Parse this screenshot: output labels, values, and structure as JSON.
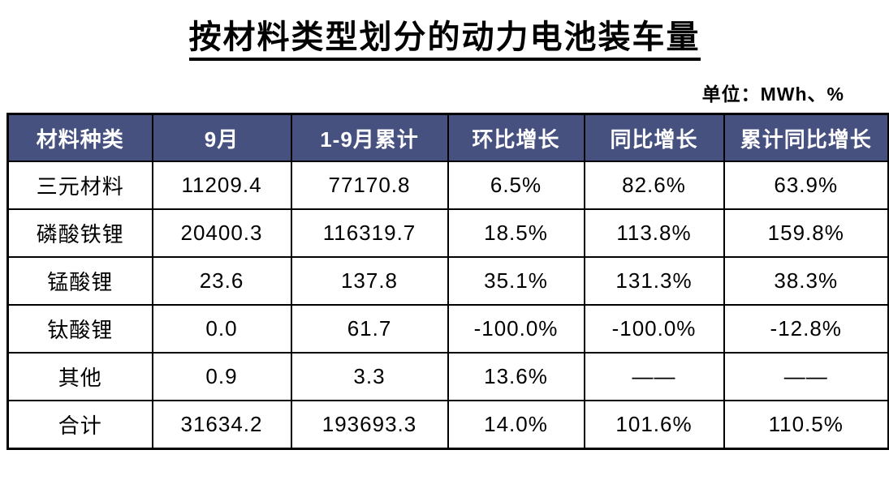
{
  "page": {
    "title": "按材料类型划分的动力电池装车量",
    "unit_label": "单位：MWh、%"
  },
  "colors": {
    "header_bg": "#475180",
    "header_text": "#ffffff",
    "border": "#000000",
    "body_text": "#000000"
  },
  "table": {
    "columns": [
      "材料种类",
      "9月",
      "1-9月累计",
      "环比增长",
      "同比增长",
      "累计同比增长"
    ],
    "rows": [
      [
        "三元材料",
        "11209.4",
        "77170.8",
        "6.5%",
        "82.6%",
        "63.9%"
      ],
      [
        "磷酸铁锂",
        "20400.3",
        "116319.7",
        "18.5%",
        "113.8%",
        "159.8%"
      ],
      [
        "锰酸锂",
        "23.6",
        "137.8",
        "35.1%",
        "131.3%",
        "38.3%"
      ],
      [
        "钛酸锂",
        "0.0",
        "61.7",
        "-100.0%",
        "-100.0%",
        "-12.8%"
      ],
      [
        "其他",
        "0.9",
        "3.3",
        "13.6%",
        "——",
        "——"
      ],
      [
        "合计",
        "31634.2",
        "193693.3",
        "14.0%",
        "101.6%",
        "110.5%"
      ]
    ]
  },
  "chart_data": {
    "type": "table",
    "title": "按材料类型划分的动力电池装车量",
    "unit": "MWh、%",
    "columns": [
      "材料种类",
      "9月",
      "1-9月累计",
      "环比增长",
      "同比增长",
      "累计同比增长"
    ],
    "records": [
      {
        "材料种类": "三元材料",
        "9月": 11209.4,
        "1-9月累计": 77170.8,
        "环比增长": "6.5%",
        "同比增长": "82.6%",
        "累计同比增长": "63.9%"
      },
      {
        "材料种类": "磷酸铁锂",
        "9月": 20400.3,
        "1-9月累计": 116319.7,
        "环比增长": "18.5%",
        "同比增长": "113.8%",
        "累计同比增长": "159.8%"
      },
      {
        "材料种类": "锰酸锂",
        "9月": 23.6,
        "1-9月累计": 137.8,
        "环比增长": "35.1%",
        "同比增长": "131.3%",
        "累计同比增长": "38.3%"
      },
      {
        "材料种类": "钛酸锂",
        "9月": 0.0,
        "1-9月累计": 61.7,
        "环比增长": "-100.0%",
        "同比增长": "-100.0%",
        "累计同比增长": "-12.8%"
      },
      {
        "材料种类": "其他",
        "9月": 0.9,
        "1-9月累计": 3.3,
        "环比增长": "13.6%",
        "同比增长": null,
        "累计同比增长": null
      },
      {
        "材料种类": "合计",
        "9月": 31634.2,
        "1-9月累计": 193693.3,
        "环比增长": "14.0%",
        "同比增长": "101.6%",
        "累计同比增长": "110.5%"
      }
    ]
  }
}
